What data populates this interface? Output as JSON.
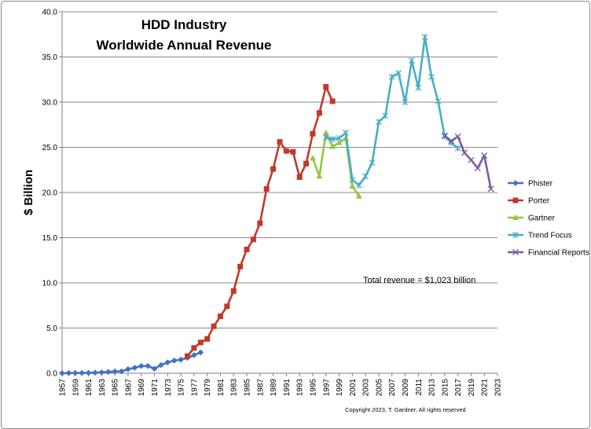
{
  "chart_data": {
    "type": "line",
    "title": "HDD Industry",
    "subtitle": "Worldwide Annual Revenue",
    "xlabel": "",
    "ylabel": "$ Billion",
    "ylim": [
      0,
      40
    ],
    "xlim": [
      1957,
      2023
    ],
    "yticks": [
      "0.0",
      "5.0",
      "10.0",
      "15.0",
      "20.0",
      "25.0",
      "30.0",
      "35.0",
      "40.0"
    ],
    "xticks": [
      "1957",
      "1959",
      "1961",
      "1963",
      "1965",
      "1967",
      "1969",
      "1971",
      "1973",
      "1975",
      "1977",
      "1979",
      "1981",
      "1983",
      "1985",
      "1987",
      "1989",
      "1991",
      "1993",
      "1995",
      "1997",
      "1999",
      "2001",
      "2003",
      "2005",
      "2007",
      "2009",
      "2011",
      "2013",
      "2015",
      "2017",
      "2019",
      "2021",
      "2023"
    ],
    "grid": true,
    "legend_position": "right",
    "annotation": "Total revenue =  $1,023 billion",
    "copyright": "Copyright 2023, T. Gardner, All rights reserved",
    "series": [
      {
        "name": "Phister",
        "color": "#4472C4",
        "marker": "diamond",
        "x": [
          1957,
          1958,
          1959,
          1960,
          1961,
          1962,
          1963,
          1964,
          1965,
          1966,
          1967,
          1968,
          1969,
          1970,
          1971,
          1972,
          1973,
          1974,
          1975,
          1976,
          1977,
          1978
        ],
        "values": [
          0.0,
          0.02,
          0.03,
          0.03,
          0.04,
          0.06,
          0.1,
          0.15,
          0.2,
          0.2,
          0.45,
          0.6,
          0.8,
          0.8,
          0.5,
          0.9,
          1.2,
          1.4,
          1.5,
          1.7,
          2.0,
          2.3
        ]
      },
      {
        "name": "Porter",
        "color": "#C0392B",
        "marker": "square",
        "x": [
          1976,
          1977,
          1978,
          1979,
          1980,
          1981,
          1982,
          1983,
          1984,
          1985,
          1986,
          1987,
          1988,
          1989,
          1990,
          1991,
          1992,
          1993,
          1994,
          1995,
          1996,
          1997,
          1998
        ],
        "values": [
          1.9,
          2.8,
          3.4,
          3.8,
          5.2,
          6.3,
          7.4,
          9.1,
          11.8,
          13.7,
          14.8,
          16.6,
          20.4,
          22.6,
          25.6,
          24.6,
          24.5,
          21.7,
          23.2,
          26.5,
          28.8,
          31.7,
          30.1
        ]
      },
      {
        "name": "Gartner",
        "color": "#92C83E",
        "marker": "triangle",
        "x": [
          1995,
          1996,
          1997,
          1998,
          1999,
          2000,
          2001,
          2002
        ],
        "values": [
          23.8,
          21.8,
          26.6,
          25.1,
          25.5,
          26.0,
          20.7,
          19.6
        ]
      },
      {
        "name": "Trend Focus",
        "color": "#4BACC6",
        "marker": "star",
        "x": [
          1997,
          1998,
          1999,
          2000,
          2001,
          2002,
          2003,
          2004,
          2005,
          2006,
          2007,
          2008,
          2009,
          2010,
          2011,
          2012,
          2013,
          2014,
          2015,
          2016,
          2017
        ],
        "values": [
          26.1,
          25.9,
          26.0,
          26.6,
          21.4,
          20.8,
          21.8,
          23.3,
          27.8,
          28.5,
          32.8,
          33.2,
          30.0,
          34.6,
          31.6,
          37.2,
          32.8,
          30.1,
          26.2,
          25.5,
          24.9
        ]
      },
      {
        "name": "Financial Reports",
        "color": "#7B5DA6",
        "marker": "x",
        "x": [
          2015,
          2016,
          2017,
          2018,
          2019,
          2020,
          2021,
          2022
        ],
        "values": [
          26.3,
          25.7,
          26.2,
          24.4,
          23.6,
          22.7,
          24.1,
          20.4
        ]
      }
    ]
  }
}
